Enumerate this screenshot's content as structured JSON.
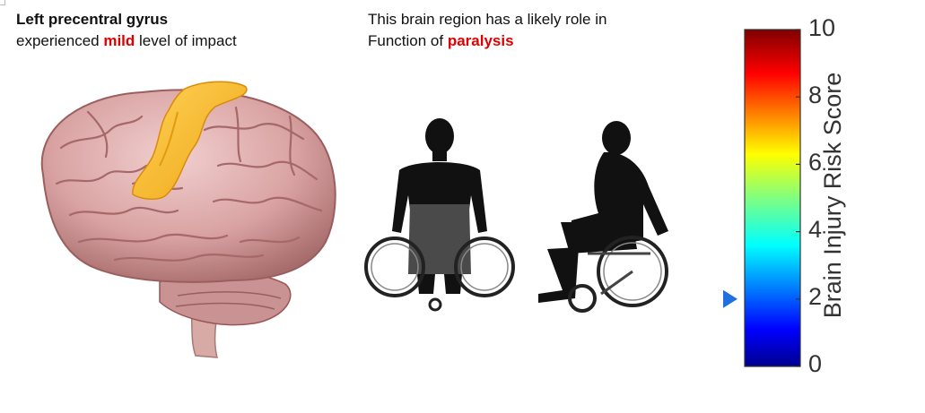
{
  "region": {
    "title": "Left precentral gyrus",
    "impact_prefix": "experienced ",
    "impact_level": "mild",
    "impact_suffix": " level of impact"
  },
  "function": {
    "line1": "This brain region has a likely role in",
    "line2_prefix": "Function of ",
    "function_name": "paralysis"
  },
  "colorbar": {
    "label": "Brain Injury Risk Score",
    "ticks": [
      "10",
      "8",
      "6",
      "4",
      "2",
      "0"
    ],
    "min": 0,
    "max": 10,
    "marker_value": 2.0
  },
  "colors": {
    "highlight": "#e00000",
    "marker": "#1f6fe0",
    "brain": "#d9a2a2",
    "region_highlight": "#f5b51e",
    "silhouette": "#111111"
  },
  "icons": [
    "brain-illustration",
    "wheelchair-person-front-icon",
    "wheelchair-person-side-icon",
    "risk-marker-icon"
  ]
}
